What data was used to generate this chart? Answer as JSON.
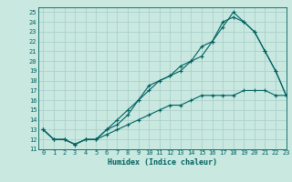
{
  "xlabel": "Humidex (Indice chaleur)",
  "xlim": [
    -0.5,
    23
  ],
  "ylim": [
    11,
    25.5
  ],
  "xticks": [
    0,
    1,
    2,
    3,
    4,
    5,
    6,
    7,
    8,
    9,
    10,
    11,
    12,
    13,
    14,
    15,
    16,
    17,
    18,
    19,
    20,
    21,
    22,
    23
  ],
  "yticks": [
    11,
    12,
    13,
    14,
    15,
    16,
    17,
    18,
    19,
    20,
    21,
    22,
    23,
    24,
    25
  ],
  "bg_color": "#c8e8e0",
  "grid_color": "#a8ccc8",
  "line_color": "#006060",
  "line1_x": [
    0,
    1,
    2,
    3,
    4,
    5,
    6,
    7,
    8,
    9,
    10,
    11,
    12,
    13,
    14,
    15,
    16,
    17,
    18,
    19,
    20,
    21,
    22,
    23
  ],
  "line1_y": [
    13,
    12,
    12,
    11.5,
    12,
    12,
    13,
    14,
    15,
    16,
    17,
    18,
    18.5,
    19.5,
    20,
    20.5,
    22,
    23.5,
    25,
    24,
    23,
    21,
    19,
    16.5
  ],
  "line2_x": [
    0,
    1,
    2,
    3,
    4,
    5,
    6,
    7,
    8,
    9,
    10,
    11,
    12,
    13,
    14,
    15,
    16,
    17,
    18,
    19,
    20,
    21,
    22,
    23
  ],
  "line2_y": [
    13,
    12,
    12,
    11.5,
    12,
    12,
    13,
    13.5,
    14.5,
    16,
    17.5,
    18,
    18.5,
    19,
    20,
    21.5,
    22,
    24,
    24.5,
    24,
    23,
    21,
    19,
    16.5
  ],
  "line3_x": [
    0,
    1,
    2,
    3,
    4,
    5,
    6,
    7,
    8,
    9,
    10,
    11,
    12,
    13,
    14,
    15,
    16,
    17,
    18,
    19,
    20,
    21,
    22,
    23
  ],
  "line3_y": [
    13,
    12,
    12,
    11.5,
    12,
    12,
    12.5,
    13,
    13.5,
    14,
    14.5,
    15,
    15.5,
    15.5,
    16,
    16.5,
    16.5,
    16.5,
    16.5,
    17,
    17,
    17,
    16.5,
    16.5
  ],
  "xlabel_fontsize": 6,
  "tick_fontsize": 5
}
